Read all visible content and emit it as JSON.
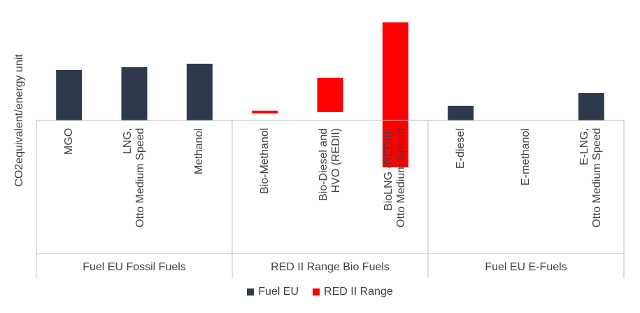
{
  "chart_data": {
    "type": "bar",
    "ylabel": "CO2equivalent/energy unit",
    "xlabel": "",
    "ylim": [
      -70,
      145
    ],
    "groups": [
      {
        "label": "Fuel EU Fossil Fuels",
        "categories": [
          "MGO",
          "LNG, Otto Medium Speed",
          "Methanol"
        ]
      },
      {
        "label": "RED II Range Bio Fuels",
        "categories": [
          "Bio-Methanol",
          "Bio-Diesel and HVO (REDII)",
          "BioLNG (REDII), Otto Medium Speed"
        ]
      },
      {
        "label": "Fuel EU E-Fuels",
        "categories": [
          "E-diesel",
          "E-methanol",
          "E-LNG, Otto Medium Speed"
        ]
      }
    ],
    "categories": [
      "MGO",
      "LNG, Otto Medium Speed",
      "Methanol",
      "Bio-Methanol",
      "Bio-Diesel and HVO (REDII)",
      "BioLNG (REDII), Otto Medium Speed",
      "E-diesel",
      "E-methanol",
      "E-LNG, Otto Medium Speed"
    ],
    "series": [
      {
        "name": "Fuel EU",
        "color": "#2e3a4b",
        "values": [
          72,
          76,
          81,
          null,
          null,
          null,
          21,
          0,
          39
        ]
      },
      {
        "name": "RED II Range",
        "color": "#ff0000",
        "ranges": [
          null,
          null,
          null,
          [
            10,
            14
          ],
          [
            12,
            61
          ],
          [
            -67,
            140
          ],
          null,
          null,
          null
        ]
      }
    ],
    "legend": "bottom-center",
    "grid": false
  }
}
